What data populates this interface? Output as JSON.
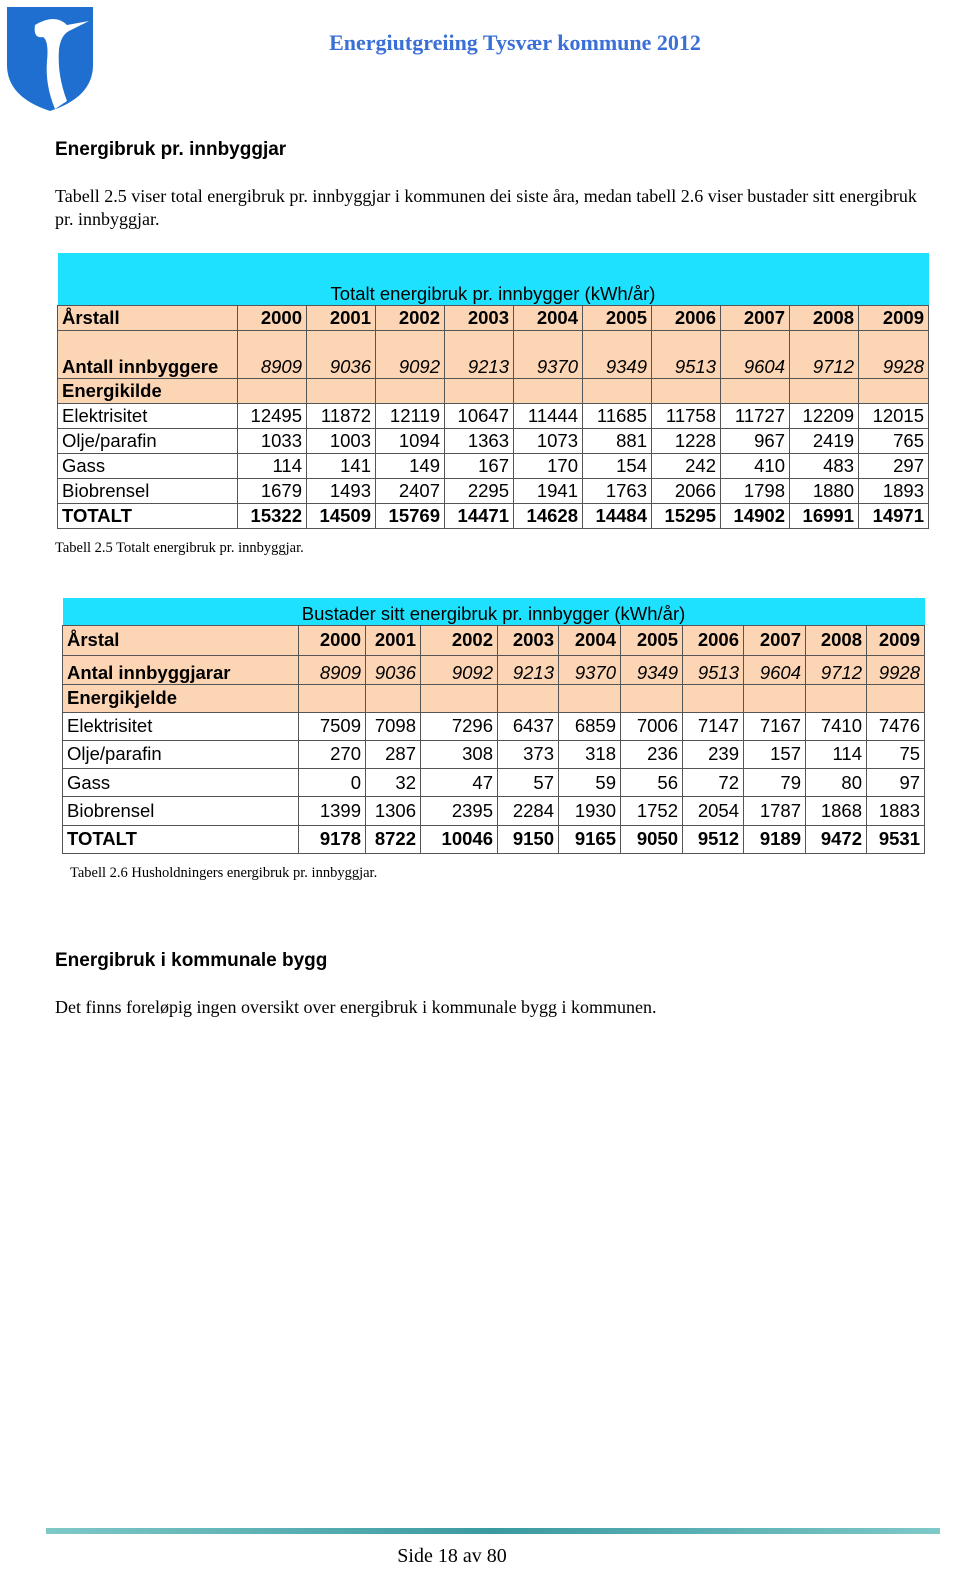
{
  "header": {
    "title": "Energiutgreiing Tysvær kommune 2012"
  },
  "section1": {
    "heading": "Energibruk pr. innbyggjar",
    "paragraph": "Tabell 2.5 viser total energibruk pr. innbyggjar i kommunen dei siste åra, medan tabell 2.6 viser bustader sitt energibruk pr. innbyggjar."
  },
  "table1": {
    "title": "Totalt energibruk pr. innbygger (kWh/år)",
    "year_label": "Årstall",
    "years": [
      2000,
      2001,
      2002,
      2003,
      2004,
      2005,
      2006,
      2007,
      2008,
      2009
    ],
    "population_label": "Antall innbyggere",
    "population": [
      8909,
      9036,
      9092,
      9213,
      9370,
      9349,
      9513,
      9604,
      9712,
      9928
    ],
    "source_label": "Energikilde",
    "rows": [
      {
        "label": "Elektrisitet",
        "values": [
          12495,
          11872,
          12119,
          10647,
          11444,
          11685,
          11758,
          11727,
          12209,
          12015
        ]
      },
      {
        "label": "Olje/parafin",
        "values": [
          1033,
          1003,
          1094,
          1363,
          1073,
          881,
          1228,
          967,
          2419,
          765
        ]
      },
      {
        "label": "Gass",
        "values": [
          114,
          141,
          149,
          167,
          170,
          154,
          242,
          410,
          483,
          297
        ]
      },
      {
        "label": "Biobrensel",
        "values": [
          1679,
          1493,
          2407,
          2295,
          1941,
          1763,
          2066,
          1798,
          1880,
          1893
        ]
      }
    ],
    "total": {
      "label": "TOTALT",
      "values": [
        15322,
        14509,
        15769,
        14471,
        14628,
        14484,
        15295,
        14902,
        16991,
        14971
      ]
    },
    "caption": "Tabell 2.5 Totalt energibruk pr. innbyggjar."
  },
  "table2": {
    "title": "Bustader sitt energibruk pr. innbygger (kWh/år)",
    "year_label": "Årstal",
    "years": [
      2000,
      2001,
      2002,
      2003,
      2004,
      2005,
      2006,
      2007,
      2008,
      2009
    ],
    "population_label": "Antal innbyggjarar",
    "population": [
      8909,
      9036,
      9092,
      9213,
      9370,
      9349,
      9513,
      9604,
      9712,
      9928
    ],
    "source_label": "Energikjelde",
    "rows": [
      {
        "label": "Elektrisitet",
        "values": [
          7509,
          7098,
          7296,
          6437,
          6859,
          7006,
          7147,
          7167,
          7410,
          7476
        ]
      },
      {
        "label": "Olje/parafin",
        "values": [
          270,
          287,
          308,
          373,
          318,
          236,
          239,
          157,
          114,
          75
        ]
      },
      {
        "label": "Gass",
        "values": [
          0,
          32,
          47,
          57,
          59,
          56,
          72,
          79,
          80,
          97
        ]
      },
      {
        "label": "Biobrensel",
        "values": [
          1399,
          1306,
          2395,
          2284,
          1930,
          1752,
          2054,
          1787,
          1868,
          1883
        ]
      }
    ],
    "total": {
      "label": "TOTALT",
      "values": [
        9178,
        8722,
        10046,
        9150,
        9165,
        9050,
        9512,
        9189,
        9472,
        9531
      ]
    },
    "caption": "Tabell 2.6 Husholdningers energibruk pr. innbyggjar."
  },
  "section2": {
    "heading": "Energibruk i kommunale bygg",
    "paragraph": "Det finns foreløpig ingen oversikt over energibruk i kommunale bygg i kommunen."
  },
  "footer": {
    "page": "Side 18 av 80"
  }
}
